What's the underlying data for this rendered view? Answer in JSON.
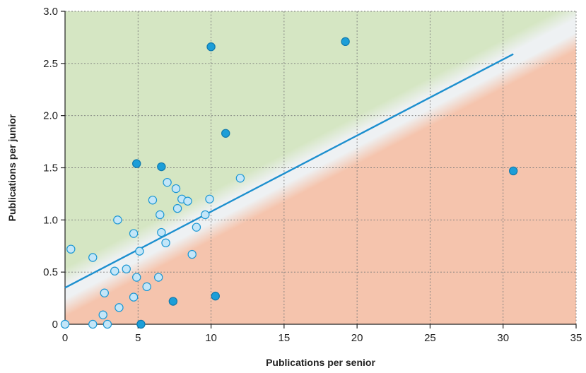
{
  "chart_data": {
    "type": "scatter",
    "title": "",
    "xlabel": "Publications per senior",
    "ylabel": "Publications per junior",
    "xlim": [
      0,
      35
    ],
    "ylim": [
      0,
      3.0
    ],
    "x_ticks": [
      0,
      5,
      10,
      15,
      20,
      25,
      30,
      35
    ],
    "y_ticks": [
      0,
      0.5,
      1.0,
      1.5,
      2.0,
      2.5,
      3.0
    ],
    "x_tick_labels": [
      "0",
      "5",
      "10",
      "15",
      "20",
      "25",
      "30",
      "35"
    ],
    "y_tick_labels": [
      "0",
      "0.5",
      "1.0",
      "1.5",
      "2.0",
      "2.5",
      "3.0"
    ],
    "grid": true,
    "background_zones": [
      {
        "zone": "above-line",
        "color": "#d5e6c3"
      },
      {
        "zone": "near-line",
        "color": "#eef1f3"
      },
      {
        "zone": "below-line",
        "color": "#f5c4ad"
      }
    ],
    "series": [
      {
        "marker_fill": "#c4e6f8",
        "marker_stroke": "#1c97d3",
        "points": [
          {
            "x": 0,
            "y": 0
          },
          {
            "x": 0.4,
            "y": 0.72
          },
          {
            "x": 1.9,
            "y": 0.64
          },
          {
            "x": 1.9,
            "y": 0
          },
          {
            "x": 2.6,
            "y": 0.09
          },
          {
            "x": 2.7,
            "y": 0.3
          },
          {
            "x": 2.9,
            "y": 0
          },
          {
            "x": 3.4,
            "y": 0.51
          },
          {
            "x": 3.6,
            "y": 1.0
          },
          {
            "x": 3.7,
            "y": 0.16
          },
          {
            "x": 4.2,
            "y": 0.53
          },
          {
            "x": 4.7,
            "y": 0.87
          },
          {
            "x": 4.7,
            "y": 0.26
          },
          {
            "x": 4.9,
            "y": 0.45
          },
          {
            "x": 5.1,
            "y": 0.7
          },
          {
            "x": 5.6,
            "y": 0.36
          },
          {
            "x": 6.0,
            "y": 1.19
          },
          {
            "x": 6.4,
            "y": 0.45
          },
          {
            "x": 6.5,
            "y": 1.05
          },
          {
            "x": 6.6,
            "y": 0.88
          },
          {
            "x": 6.9,
            "y": 0.78
          },
          {
            "x": 7.0,
            "y": 1.36
          },
          {
            "x": 7.6,
            "y": 1.3
          },
          {
            "x": 7.7,
            "y": 1.11
          },
          {
            "x": 8.0,
            "y": 1.2
          },
          {
            "x": 8.4,
            "y": 1.18
          },
          {
            "x": 8.7,
            "y": 0.67
          },
          {
            "x": 9.0,
            "y": 0.93
          },
          {
            "x": 9.6,
            "y": 1.05
          },
          {
            "x": 9.9,
            "y": 1.2
          },
          {
            "x": 12.0,
            "y": 1.4
          }
        ]
      },
      {
        "marker_fill": "#1c9ed8",
        "marker_stroke": "#0f79ad",
        "points": [
          {
            "x": 4.9,
            "y": 1.54
          },
          {
            "x": 5.2,
            "y": 0
          },
          {
            "x": 6.6,
            "y": 1.51
          },
          {
            "x": 7.4,
            "y": 0.22
          },
          {
            "x": 10.0,
            "y": 2.66
          },
          {
            "x": 10.3,
            "y": 0.27
          },
          {
            "x": 11.0,
            "y": 1.83
          },
          {
            "x": 19.2,
            "y": 2.71
          },
          {
            "x": 30.7,
            "y": 1.47
          }
        ]
      }
    ],
    "trend_line": {
      "color": "#1c8fce",
      "x": [
        0,
        30.7
      ],
      "y": [
        0.35,
        2.59
      ]
    }
  }
}
